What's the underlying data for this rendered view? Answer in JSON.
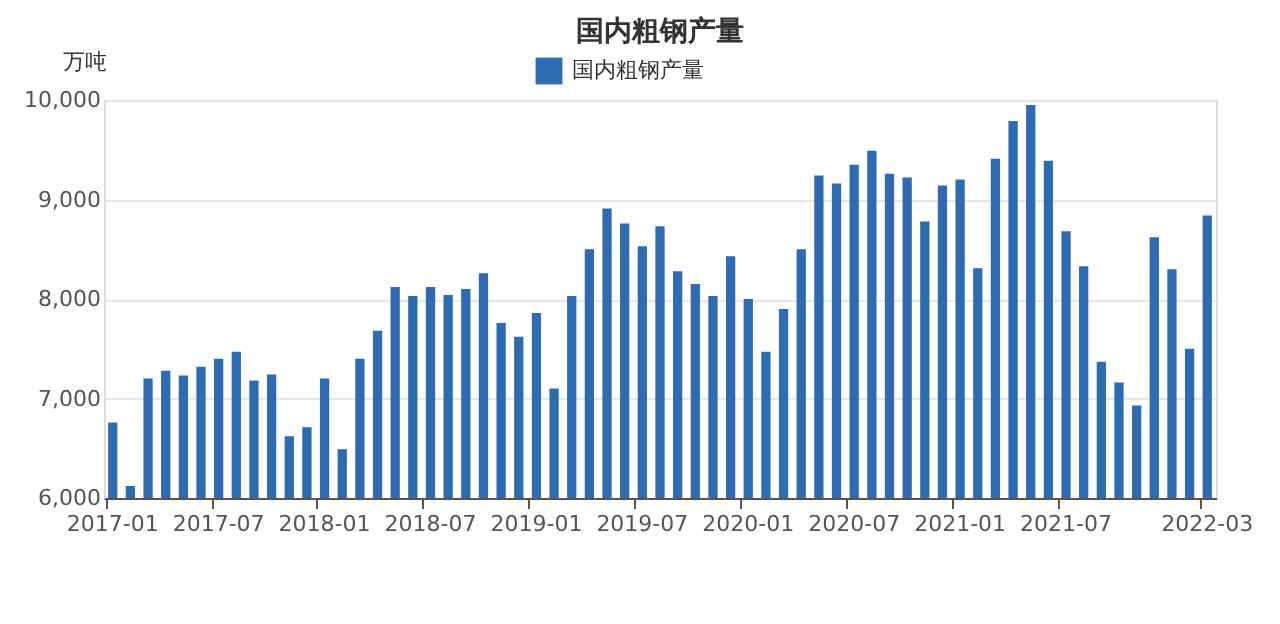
{
  "chart_data": {
    "type": "bar",
    "title": "国内粗钢产量",
    "ylabel": "万吨",
    "categories": [
      "2017-01",
      null,
      null,
      null,
      null,
      null,
      "2017-07",
      null,
      null,
      null,
      null,
      null,
      "2018-01",
      null,
      null,
      null,
      null,
      null,
      "2018-07",
      null,
      null,
      null,
      null,
      null,
      "2019-01",
      null,
      null,
      null,
      null,
      null,
      "2019-07",
      null,
      null,
      null,
      null,
      null,
      "2020-01",
      null,
      null,
      null,
      null,
      null,
      "2020-07",
      null,
      null,
      null,
      null,
      null,
      "2021-01",
      null,
      null,
      null,
      null,
      null,
      "2021-07",
      null,
      null,
      null,
      null,
      null,
      null,
      null,
      "2022-03"
    ],
    "series": [
      {
        "name": "国内粗钢产量",
        "color": "#2e6bb0",
        "values": [
          6760,
          6120,
          7200,
          7280,
          7230,
          7320,
          7400,
          7470,
          7180,
          7240,
          6620,
          6710,
          7200,
          6490,
          7400,
          7680,
          8120,
          8030,
          8120,
          8040,
          8100,
          8260,
          7760,
          7620,
          7860,
          7100,
          8030,
          8500,
          8910,
          8760,
          8530,
          8730,
          8280,
          8150,
          8030,
          8430,
          8000,
          7470,
          7900,
          8500,
          9240,
          9160,
          9350,
          9490,
          9260,
          9220,
          8780,
          9140,
          9200,
          8310,
          9410,
          9790,
          9950,
          9390,
          8680,
          8330,
          7370,
          7160,
          6930,
          8620,
          8300,
          7500,
          8840
        ]
      }
    ],
    "ylim": [
      6000,
      10000
    ],
    "yticks": [
      {
        "value": 6000,
        "label": "6,000"
      },
      {
        "value": 7000,
        "label": "7,000"
      },
      {
        "value": 8000,
        "label": "8,000"
      },
      {
        "value": 9000,
        "label": "9,000"
      },
      {
        "value": 10000,
        "label": "10,000"
      }
    ],
    "grid": "y",
    "legend": "top"
  }
}
